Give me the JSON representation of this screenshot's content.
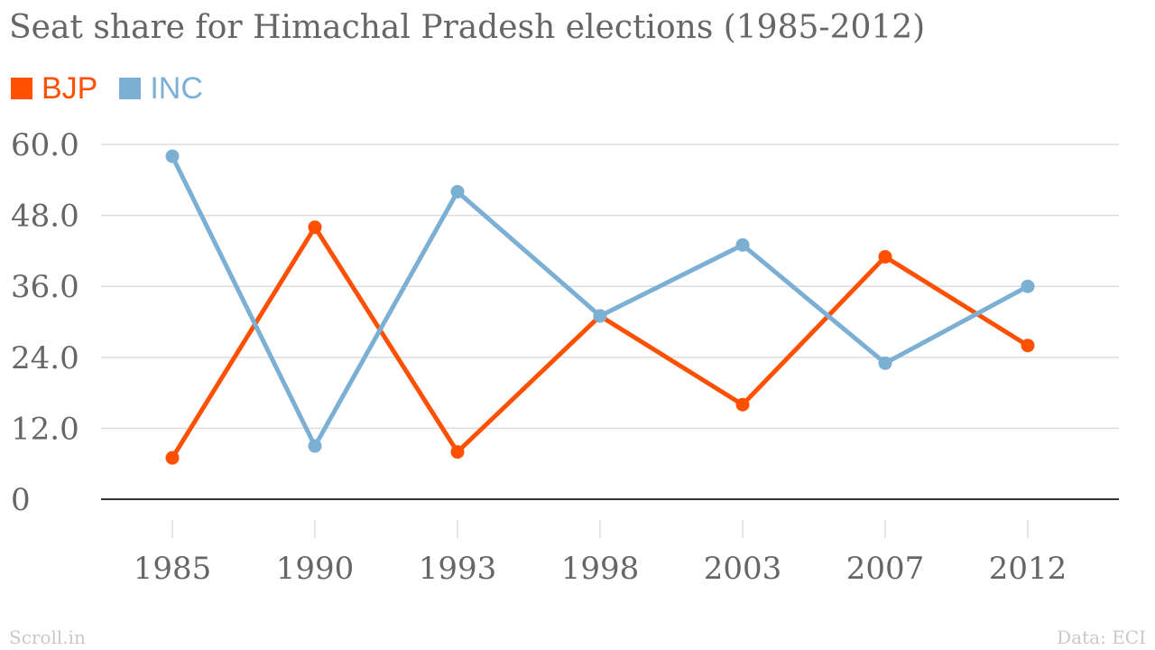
{
  "chart_data": {
    "type": "line",
    "title": "Seat share for Himachal Pradesh elections (1985-2012)",
    "xlabel": "",
    "ylabel": "",
    "categories": [
      "1985",
      "1990",
      "1993",
      "1998",
      "2003",
      "2007",
      "2012"
    ],
    "series": [
      {
        "name": "BJP",
        "color": "#ff5000",
        "values": [
          7,
          46,
          8,
          31,
          16,
          41,
          26
        ]
      },
      {
        "name": "INC",
        "color": "#7bafd4",
        "values": [
          58,
          9,
          52,
          31,
          43,
          23,
          36
        ]
      }
    ],
    "ylim": [
      0,
      60
    ],
    "yticks": [
      "0",
      "12.0",
      "24.0",
      "36.0",
      "48.0",
      "60.0"
    ],
    "grid": true,
    "legend": "top-left"
  },
  "footer": {
    "source_site": "Scroll.in",
    "data_credit": "Data: ECI"
  }
}
